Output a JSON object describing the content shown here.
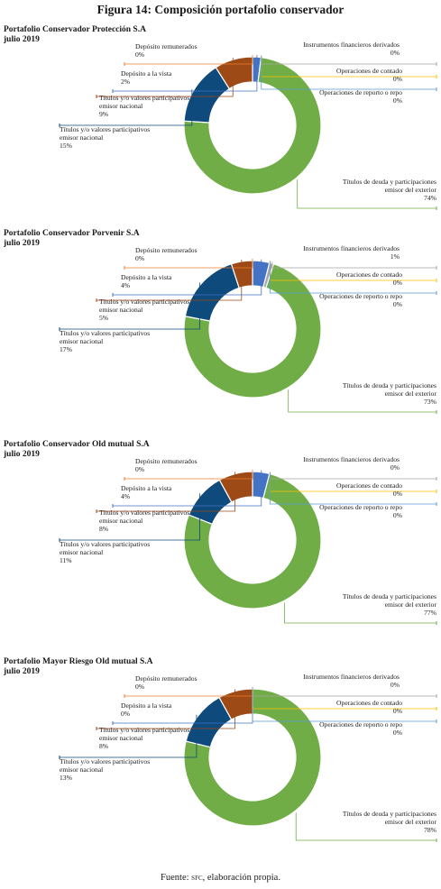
{
  "figure_title": "Figura 14: Composición portafolio conservador",
  "source_note": {
    "prefix": "Fuente: ",
    "sfc": "sfc",
    "suffix": ", elaboración propia."
  },
  "chart_data": [
    {
      "type": "pie",
      "title": "Portafolio Conservador Protección S.A",
      "subtitle": "julio 2019",
      "slices": [
        {
          "name": "Títulos de deuda y participaciones emisor del exterior",
          "value": 74,
          "label": "74%",
          "color": "#70AD47"
        },
        {
          "name": "Títulos y/o valores participativos emisor nacional",
          "value": 15,
          "label": "15%",
          "color": "#0E4A7B"
        },
        {
          "name": "Títulos y/o valores participativos emisor nacional",
          "value": 9,
          "label": "9%",
          "color": "#9E4A17"
        },
        {
          "name": "Depósito a la vista",
          "value": 2,
          "label": "2%",
          "color": "#4472C4"
        },
        {
          "name": "Depósito remunerados",
          "value": 0,
          "label": "0%",
          "color": "#ED7D31"
        },
        {
          "name": "Instrumentos financieros derivados",
          "value": 0,
          "label": "0%",
          "color": "#A5A5A5"
        },
        {
          "name": "Operaciones de contado",
          "value": 0,
          "label": "0%",
          "color": "#FFC000"
        },
        {
          "name": "Operaciones de reporto o repo",
          "value": 0,
          "label": "0%",
          "color": "#5B9BD5"
        }
      ]
    },
    {
      "type": "pie",
      "title": "Portafolio Conservador Porvenir S.A",
      "subtitle": "julio 2019",
      "slices": [
        {
          "name": "Títulos de deuda y participaciones emisor del exterior",
          "value": 73,
          "label": "73%",
          "color": "#70AD47"
        },
        {
          "name": "Títulos y/o valores participativos emisor nacional",
          "value": 17,
          "label": "17%",
          "color": "#0E4A7B"
        },
        {
          "name": "Títulos y/o valores participativos emisor nacional",
          "value": 5,
          "label": "5%",
          "color": "#9E4A17"
        },
        {
          "name": "Depósito a la vista",
          "value": 4,
          "label": "4%",
          "color": "#4472C4"
        },
        {
          "name": "Depósito remunerados",
          "value": 0,
          "label": "0%",
          "color": "#ED7D31"
        },
        {
          "name": "Instrumentos financieros derivados",
          "value": 1,
          "label": "1%",
          "color": "#A5A5A5"
        },
        {
          "name": "Operaciones de contado",
          "value": 0,
          "label": "0%",
          "color": "#FFC000"
        },
        {
          "name": "Operaciones de reporto o repo",
          "value": 0,
          "label": "0%",
          "color": "#5B9BD5"
        }
      ]
    },
    {
      "type": "pie",
      "title": "Portafolio Conservador Old mutual S.A",
      "subtitle": "julio 2019",
      "slices": [
        {
          "name": "Títulos de deuda y participaciones emisor del exterior",
          "value": 77,
          "label": "77%",
          "color": "#70AD47"
        },
        {
          "name": "Títulos y/o valores participativos emisor nacional",
          "value": 11,
          "label": "11%",
          "color": "#0E4A7B"
        },
        {
          "name": "Títulos y/o valores participativos emisor nacional",
          "value": 8,
          "label": "8%",
          "color": "#9E4A17"
        },
        {
          "name": "Depósito a la vista",
          "value": 4,
          "label": "4%",
          "color": "#4472C4"
        },
        {
          "name": "Depósito remunerados",
          "value": 0,
          "label": "0%",
          "color": "#ED7D31"
        },
        {
          "name": "Instrumentos financieros derivados",
          "value": 0,
          "label": "0%",
          "color": "#A5A5A5"
        },
        {
          "name": "Operaciones de contado",
          "value": 0,
          "label": "0%",
          "color": "#FFC000"
        },
        {
          "name": "Operaciones de reporto o repo",
          "value": 0,
          "label": "0%",
          "color": "#5B9BD5"
        }
      ]
    },
    {
      "type": "pie",
      "title": "Portafolio Mayor Riesgo Old mutual S.A",
      "subtitle": "julio 2019",
      "slices": [
        {
          "name": "Títulos de deuda y participaciones emisor del exterior",
          "value": 78,
          "label": "78%",
          "color": "#70AD47"
        },
        {
          "name": "Títulos y/o valores participativos emisor nacional",
          "value": 13,
          "label": "13%",
          "color": "#0E4A7B"
        },
        {
          "name": "Títulos y/o valores participativos emisor nacional",
          "value": 8,
          "label": "8%",
          "color": "#9E4A17"
        },
        {
          "name": "Depósito a la vista",
          "value": 0,
          "label": "0%",
          "color": "#4472C4"
        },
        {
          "name": "Depósito remunerados",
          "value": 0,
          "label": "0%",
          "color": "#ED7D31"
        },
        {
          "name": "Instrumentos financieros derivados",
          "value": 0,
          "label": "0%",
          "color": "#A5A5A5"
        },
        {
          "name": "Operaciones de contado",
          "value": 0,
          "label": "0%",
          "color": "#FFC000"
        },
        {
          "name": "Operaciones de reporto o repo",
          "value": 0,
          "label": "0%",
          "color": "#5B9BD5"
        }
      ]
    }
  ]
}
